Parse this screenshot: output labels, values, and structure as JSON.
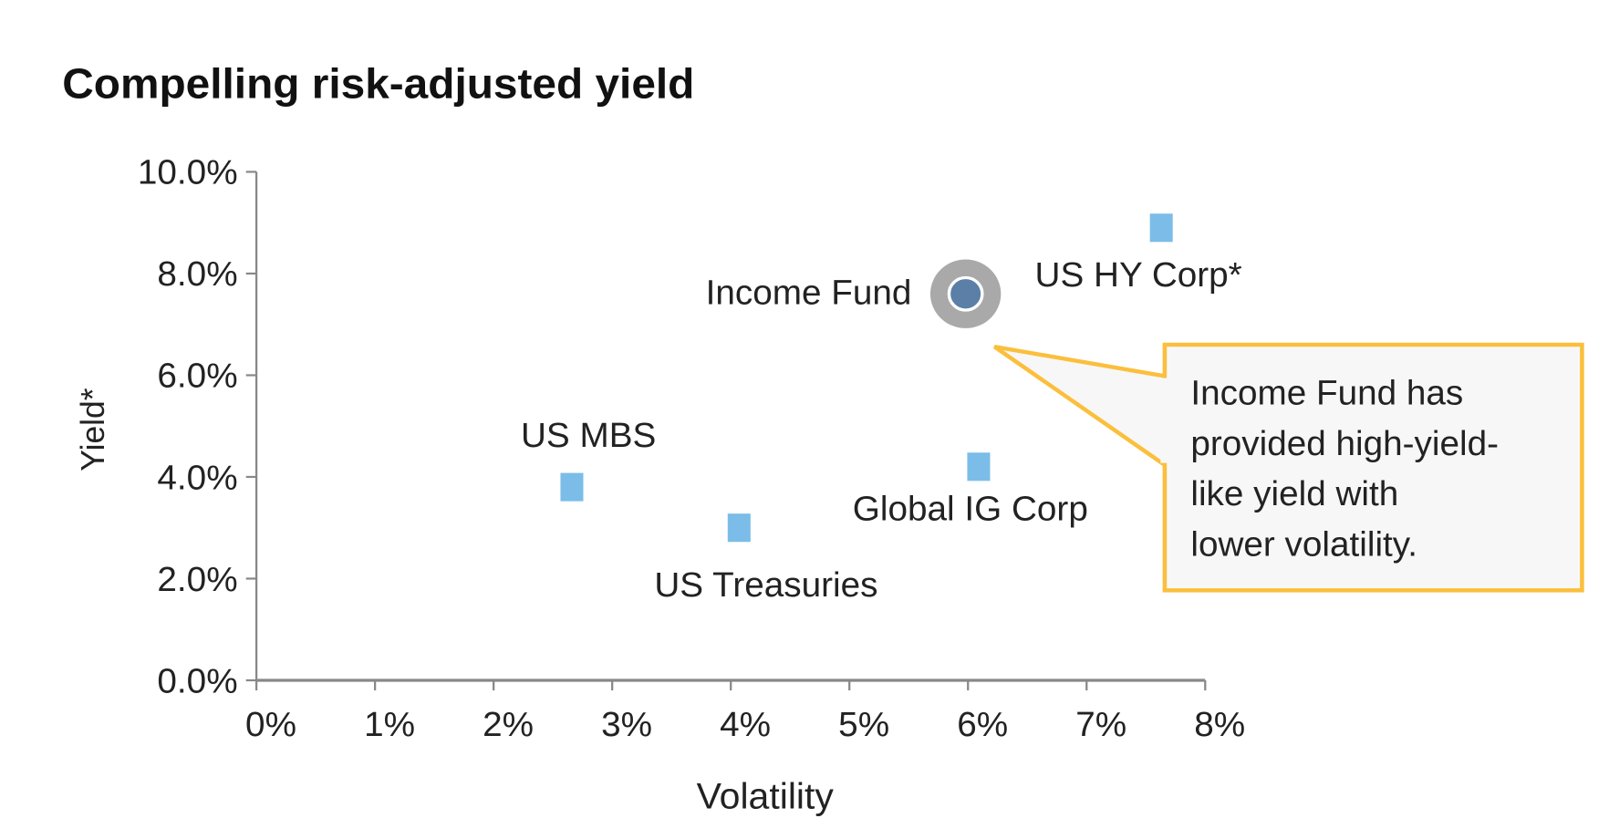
{
  "chart_data": {
    "type": "scatter",
    "title": "Compelling risk-adjusted yield",
    "xlabel": "Volatility",
    "ylabel": "Yield*",
    "xlim": [
      0,
      8
    ],
    "ylim": [
      0,
      10
    ],
    "x_ticks": [
      "0%",
      "1%",
      "2%",
      "3%",
      "4%",
      "5%",
      "6%",
      "7%",
      "8%"
    ],
    "y_ticks": [
      "0.0%",
      "2.0%",
      "4.0%",
      "6.0%",
      "8.0%",
      "10.0%"
    ],
    "grid": false,
    "points": [
      {
        "name": "Income Fund",
        "x": 5.98,
        "y": 7.6,
        "marker": "circle",
        "color": "#5b7fa6",
        "label_pos": "left"
      },
      {
        "name": "US HY Corp*",
        "x": 7.63,
        "y": 8.9,
        "marker": "square",
        "color": "#7bbde8",
        "label_pos": "below"
      },
      {
        "name": "US MBS",
        "x": 2.66,
        "y": 3.8,
        "marker": "square",
        "color": "#7bbde8",
        "label_pos": "above"
      },
      {
        "name": "US Treasuries",
        "x": 4.07,
        "y": 3.0,
        "marker": "square",
        "color": "#7bbde8",
        "label_pos": "below"
      },
      {
        "name": "Global IG Corp",
        "x": 6.09,
        "y": 4.2,
        "marker": "square",
        "color": "#7bbde8",
        "label_pos": "below"
      }
    ],
    "annotation": {
      "lines": [
        "Income Fund has",
        "provided high-yield-",
        "like yield with",
        "lower volatility."
      ],
      "border_color": "#fbbf3c",
      "fill_color": "#f7f7f7"
    }
  }
}
